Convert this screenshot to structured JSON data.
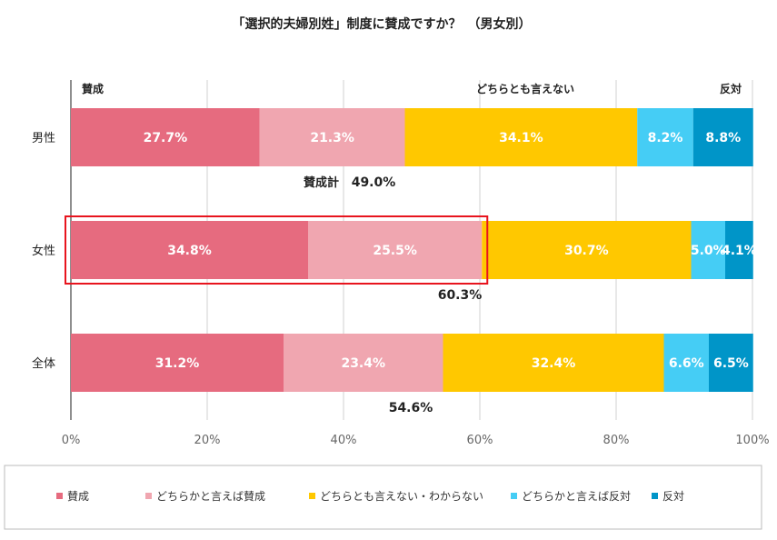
{
  "chart_data": {
    "type": "bar",
    "orientation": "horizontal",
    "stacked": true,
    "title": "「選択的夫婦別姓」制度に賛成ですか？　（男女別）",
    "categories": [
      "男性",
      "女性",
      "全体"
    ],
    "series": [
      {
        "name": "賛成",
        "color": "#e66b7f",
        "values": [
          27.7,
          34.8,
          31.2
        ],
        "labels": [
          "27.7%",
          "34.8%",
          "31.2%"
        ]
      },
      {
        "name": "どちらかと言えば賛成",
        "color": "#f0a6b0",
        "values": [
          21.3,
          25.5,
          23.4
        ],
        "labels": [
          "21.3%",
          "25.5%",
          "23.4%"
        ]
      },
      {
        "name": "どちらとも言えない・わからない",
        "color": "#ffc800",
        "values": [
          34.1,
          30.7,
          32.4
        ],
        "labels": [
          "34.1%",
          "30.7%",
          "32.4%"
        ]
      },
      {
        "name": "どちらかと言えば反対",
        "color": "#45cdf5",
        "values": [
          8.2,
          5.0,
          6.6
        ],
        "labels": [
          "8.2%",
          "5.0%",
          "6.6%"
        ]
      },
      {
        "name": "反対",
        "color": "#0095c8",
        "values": [
          8.8,
          4.1,
          6.5
        ],
        "labels": [
          "8.8%",
          "4.1%",
          "6.5%"
        ]
      }
    ],
    "xlim": [
      0,
      100
    ],
    "ticks": [
      0,
      20,
      40,
      60,
      80,
      100
    ],
    "tick_labels": [
      "0%",
      "20%",
      "40%",
      "60%",
      "80%",
      "100%"
    ],
    "top_labels": [
      "賛成",
      "どちらとも言えない",
      "反対"
    ],
    "sum_prefix": "賛成計",
    "sum_labels": [
      "49.0%",
      "60.3%",
      "54.6%"
    ],
    "highlight_category": "女性",
    "highlight_color": "#e8141e",
    "grid": true,
    "legend_position": "bottom"
  }
}
